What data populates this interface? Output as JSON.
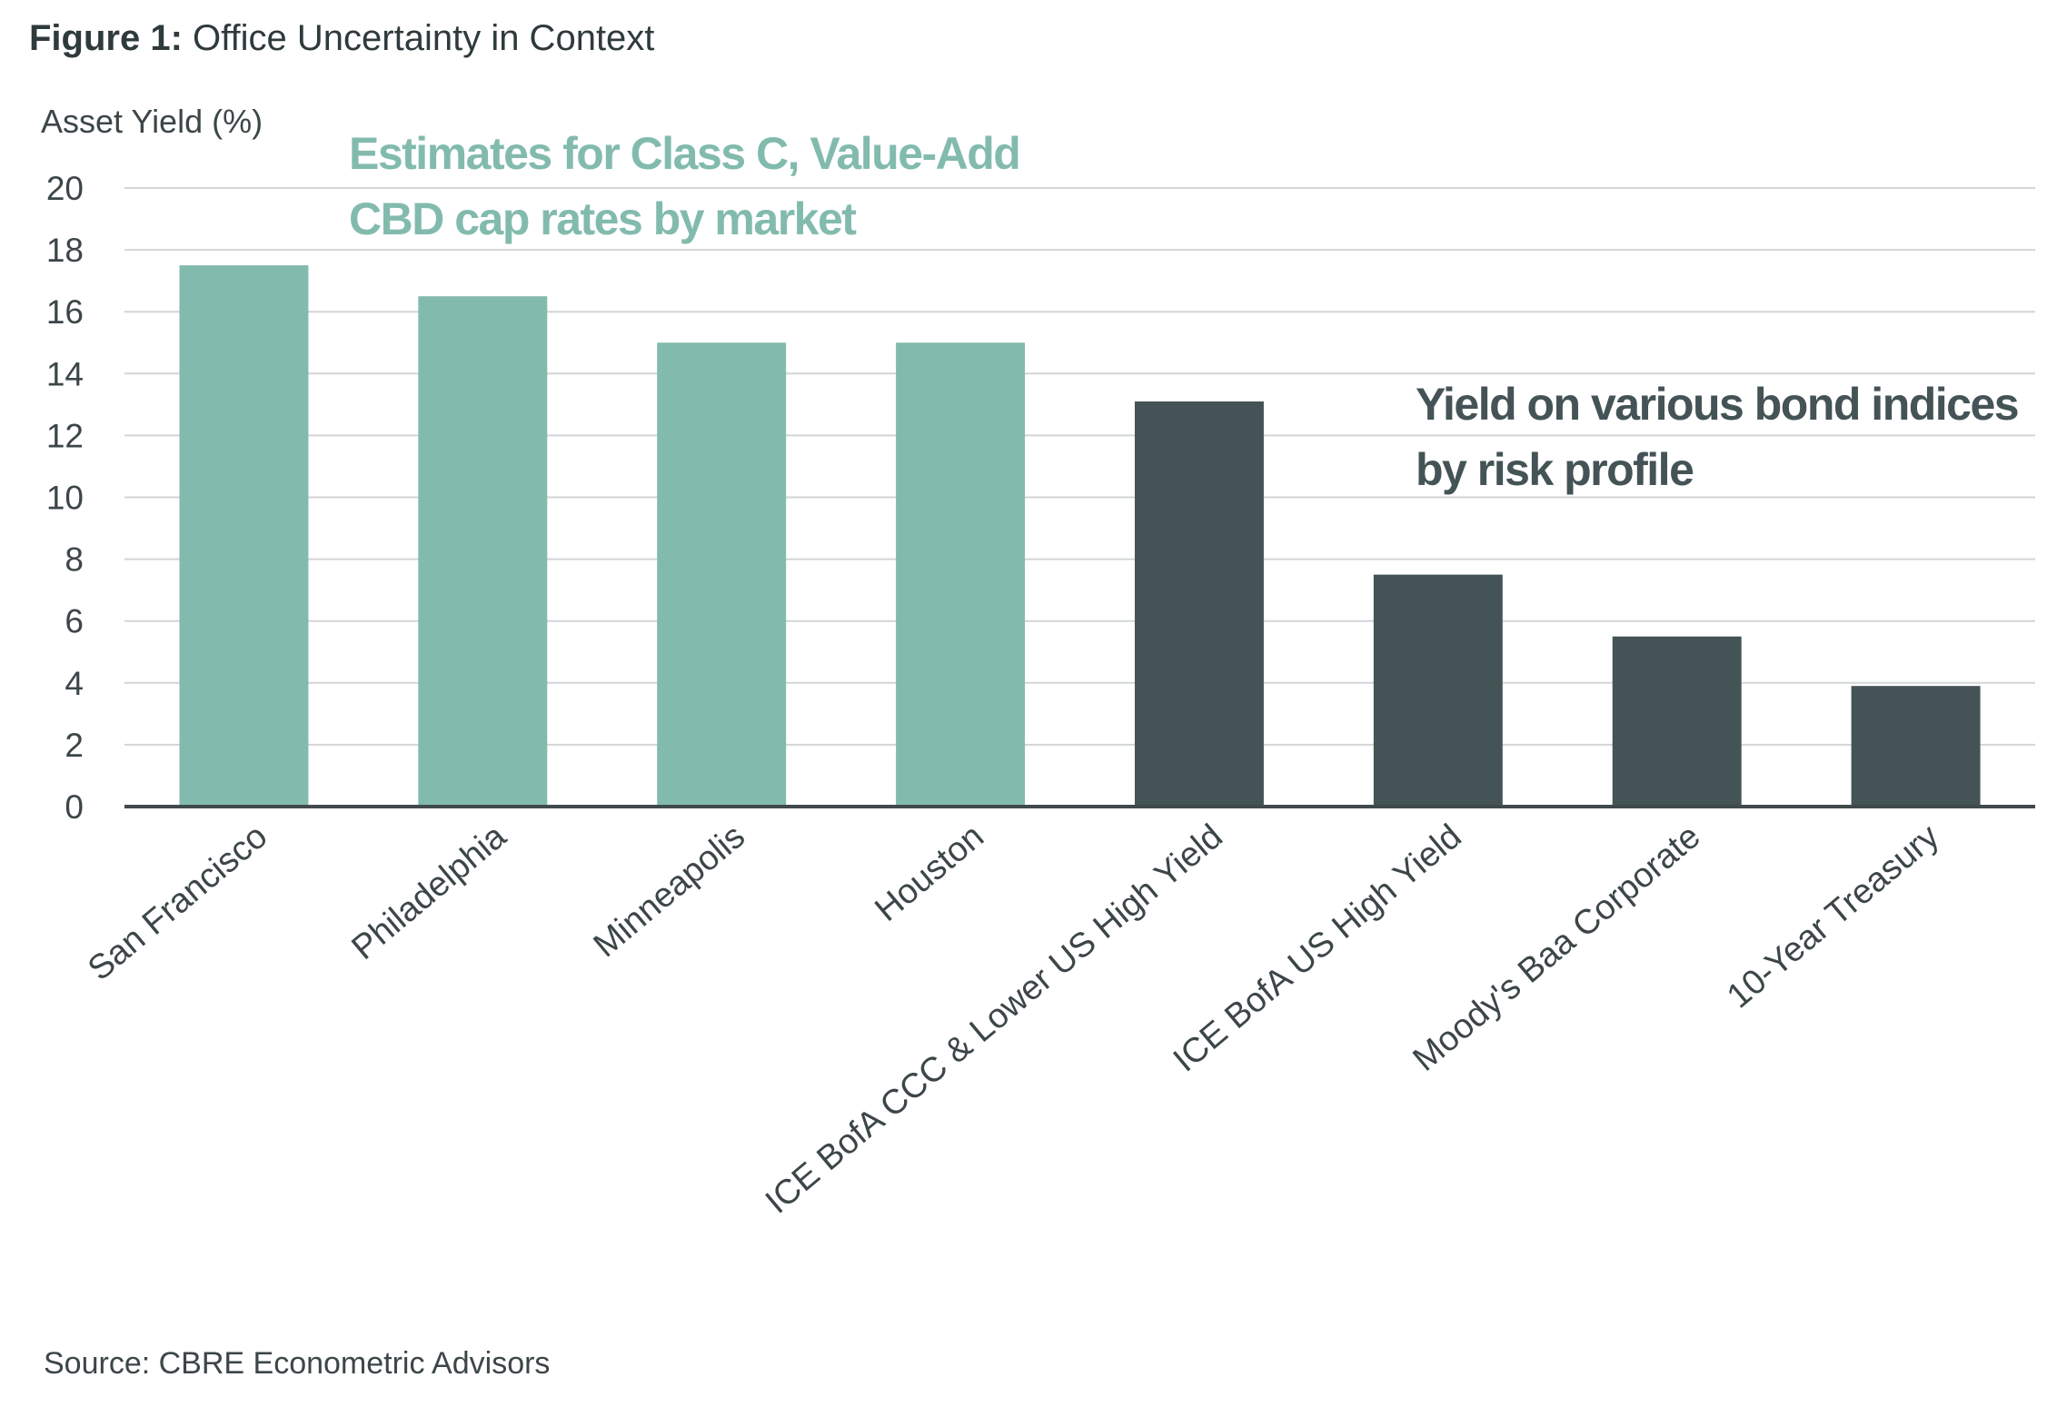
{
  "figure_label": "Figure 1:",
  "figure_title": "Office Uncertainty in Context",
  "source": "Source: CBRE Econometric Advisors",
  "colors": {
    "cap_rate": "#82bbad",
    "bond": "#445356",
    "grid": "#d2d5d6",
    "axis": "#404a4c",
    "text": "#3c4648"
  },
  "chart_data": {
    "type": "bar",
    "title": "Office Uncertainty in Context",
    "ylabel": "Asset Yield (%)",
    "ylim": [
      0,
      20
    ],
    "yticks": [
      0,
      2,
      4,
      6,
      8,
      10,
      12,
      14,
      16,
      18,
      20
    ],
    "grid": true,
    "categories": [
      "San Francisco",
      "Philadelphia",
      "Minneapolis",
      "Houston",
      "ICE BofA CCC & Lower US High Yield",
      "ICE BofA US High Yield",
      "Moody's Baa Corporate",
      "10-Year Treasury"
    ],
    "values": [
      17.5,
      16.5,
      15.0,
      15.0,
      13.1,
      7.5,
      5.5,
      3.9
    ],
    "groups": [
      "cap_rate",
      "cap_rate",
      "cap_rate",
      "cap_rate",
      "bond",
      "bond",
      "bond",
      "bond"
    ],
    "annotations": [
      {
        "group": "cap_rate",
        "lines": [
          "Estimates for Class C, Value-Add",
          "CBD cap rates by market"
        ]
      },
      {
        "group": "bond",
        "lines": [
          "Yield on various bond indices",
          "by risk profile"
        ]
      }
    ]
  }
}
